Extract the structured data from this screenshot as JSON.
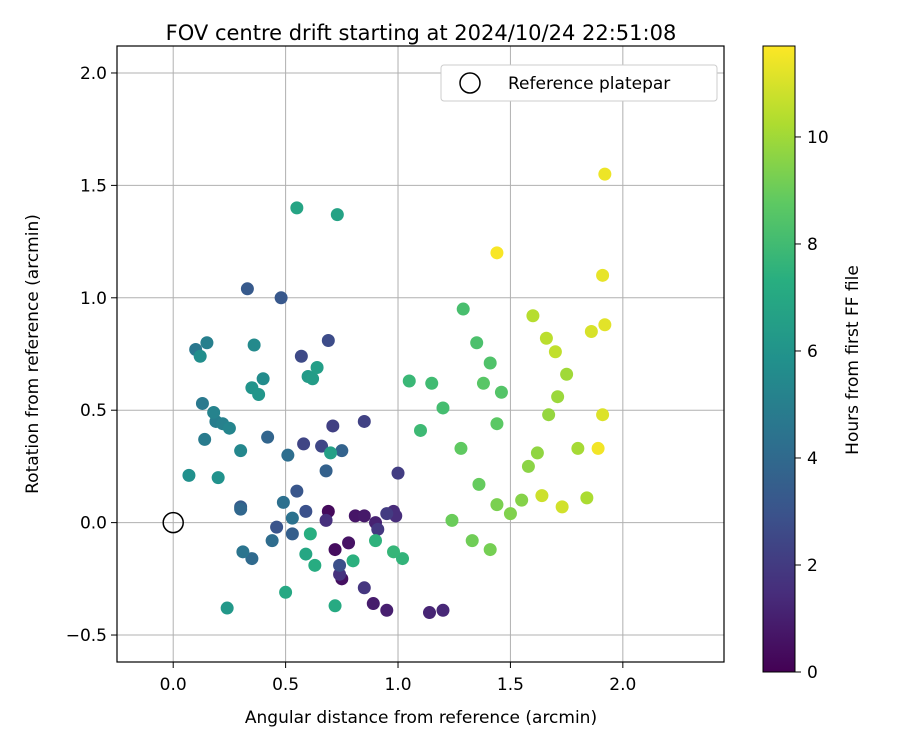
{
  "chart_data": {
    "type": "scatter",
    "title": "FOV centre drift starting at 2024/10/24 22:51:08",
    "xlabel": "Angular distance from reference (arcmin)",
    "ylabel": "Rotation from reference (arcmin)",
    "xlim": [
      -0.25,
      2.45
    ],
    "ylim": [
      -0.62,
      2.12
    ],
    "xticks": [
      0.0,
      0.5,
      1.0,
      1.5,
      2.0
    ],
    "xtick_labels": [
      "0.0",
      "0.5",
      "1.0",
      "1.5",
      "2.0"
    ],
    "yticks": [
      -0.5,
      0.0,
      0.5,
      1.0,
      1.5,
      2.0
    ],
    "ytick_labels": [
      "−0.5",
      "0.0",
      "0.5",
      "1.0",
      "1.5",
      "2.0"
    ],
    "grid": true,
    "legend": {
      "placement": "upper-right",
      "entries": [
        "Reference platepar"
      ]
    },
    "reference_point": {
      "x": 0.0,
      "y": 0.0,
      "label": "Reference platepar"
    },
    "colorbar": {
      "label": "Hours from first FF file",
      "range": [
        0,
        11.7
      ],
      "ticks": [
        0,
        2,
        4,
        6,
        8,
        10
      ],
      "tick_labels": [
        "0",
        "2",
        "4",
        "6",
        "8",
        "10"
      ],
      "colormap": "viridis"
    },
    "points": [
      [
        0.69,
        0.05,
        0.3
      ],
      [
        0.72,
        -0.12,
        0.4
      ],
      [
        0.75,
        -0.25,
        0.5
      ],
      [
        0.78,
        -0.09,
        0.6
      ],
      [
        0.81,
        0.03,
        0.7
      ],
      [
        0.85,
        0.03,
        0.8
      ],
      [
        0.89,
        -0.36,
        0.9
      ],
      [
        0.95,
        -0.39,
        1.0
      ],
      [
        0.9,
        0.0,
        1.1
      ],
      [
        1.14,
        -0.4,
        1.2
      ],
      [
        1.2,
        -0.39,
        1.3
      ],
      [
        0.98,
        0.05,
        1.4
      ],
      [
        0.99,
        0.03,
        1.5
      ],
      [
        0.68,
        0.01,
        1.6
      ],
      [
        0.74,
        -0.23,
        1.7
      ],
      [
        0.85,
        -0.29,
        1.8
      ],
      [
        0.91,
        -0.03,
        1.9
      ],
      [
        0.95,
        0.04,
        2.0
      ],
      [
        1.0,
        0.22,
        2.1
      ],
      [
        0.71,
        0.43,
        2.2
      ],
      [
        0.85,
        0.45,
        2.3
      ],
      [
        0.58,
        0.35,
        2.4
      ],
      [
        0.66,
        0.34,
        2.5
      ],
      [
        0.57,
        0.74,
        2.6
      ],
      [
        0.69,
        0.81,
        2.7
      ],
      [
        0.74,
        -0.19,
        2.8
      ],
      [
        0.59,
        0.05,
        2.9
      ],
      [
        0.46,
        -0.02,
        3.0
      ],
      [
        0.55,
        0.14,
        3.1
      ],
      [
        0.48,
        1.0,
        3.2
      ],
      [
        0.33,
        1.04,
        3.3
      ],
      [
        0.3,
        0.07,
        3.4
      ],
      [
        0.53,
        -0.05,
        3.5
      ],
      [
        0.68,
        0.23,
        3.6
      ],
      [
        0.75,
        0.32,
        3.7
      ],
      [
        0.42,
        0.38,
        3.8
      ],
      [
        0.3,
        0.06,
        3.9
      ],
      [
        0.35,
        -0.16,
        4.0
      ],
      [
        0.44,
        -0.08,
        4.1
      ],
      [
        0.51,
        0.3,
        4.2
      ],
      [
        0.49,
        0.09,
        4.3
      ],
      [
        0.53,
        0.02,
        4.4
      ],
      [
        0.31,
        -0.13,
        4.5
      ],
      [
        0.1,
        0.77,
        4.6
      ],
      [
        0.13,
        0.53,
        4.7
      ],
      [
        0.14,
        0.37,
        4.8
      ],
      [
        0.19,
        0.45,
        4.9
      ],
      [
        0.15,
        0.8,
        5.0
      ],
      [
        0.22,
        0.44,
        5.1
      ],
      [
        0.18,
        0.49,
        5.2
      ],
      [
        0.25,
        0.42,
        5.3
      ],
      [
        0.3,
        0.32,
        5.4
      ],
      [
        0.36,
        0.79,
        5.5
      ],
      [
        0.4,
        0.64,
        5.6
      ],
      [
        0.12,
        0.74,
        5.7
      ],
      [
        0.07,
        0.21,
        5.8
      ],
      [
        0.2,
        0.2,
        5.9
      ],
      [
        0.35,
        0.6,
        6.0
      ],
      [
        0.38,
        0.57,
        6.1
      ],
      [
        0.24,
        -0.38,
        6.2
      ],
      [
        0.6,
        0.65,
        6.3
      ],
      [
        0.62,
        0.64,
        6.4
      ],
      [
        0.64,
        0.69,
        6.5
      ],
      [
        0.7,
        0.31,
        6.6
      ],
      [
        0.73,
        1.37,
        6.7
      ],
      [
        0.55,
        1.4,
        6.8
      ],
      [
        0.59,
        -0.14,
        6.9
      ],
      [
        0.5,
        -0.31,
        7.0
      ],
      [
        0.72,
        -0.37,
        7.1
      ],
      [
        0.63,
        -0.19,
        7.2
      ],
      [
        0.61,
        -0.05,
        7.3
      ],
      [
        0.8,
        -0.17,
        7.4
      ],
      [
        0.9,
        -0.08,
        7.5
      ],
      [
        1.02,
        -0.16,
        7.6
      ],
      [
        0.98,
        -0.13,
        7.7
      ],
      [
        1.05,
        0.63,
        7.8
      ],
      [
        1.1,
        0.41,
        7.9
      ],
      [
        1.15,
        0.62,
        8.0
      ],
      [
        1.2,
        0.51,
        8.1
      ],
      [
        1.29,
        0.95,
        8.2
      ],
      [
        1.35,
        0.8,
        8.3
      ],
      [
        1.41,
        0.71,
        8.4
      ],
      [
        1.46,
        0.58,
        8.5
      ],
      [
        1.38,
        0.62,
        8.6
      ],
      [
        1.44,
        0.44,
        8.7
      ],
      [
        1.28,
        0.33,
        8.8
      ],
      [
        1.36,
        0.17,
        8.9
      ],
      [
        1.24,
        0.01,
        9.0
      ],
      [
        1.33,
        -0.08,
        9.1
      ],
      [
        1.41,
        -0.12,
        9.2
      ],
      [
        1.44,
        0.08,
        9.3
      ],
      [
        1.5,
        0.04,
        9.4
      ],
      [
        1.55,
        0.1,
        9.5
      ],
      [
        1.58,
        0.25,
        9.6
      ],
      [
        1.62,
        0.31,
        9.7
      ],
      [
        1.67,
        0.48,
        9.8
      ],
      [
        1.71,
        0.56,
        9.9
      ],
      [
        1.75,
        0.66,
        10.0
      ],
      [
        1.8,
        0.33,
        10.1
      ],
      [
        1.84,
        0.11,
        10.2
      ],
      [
        1.6,
        0.92,
        10.4
      ],
      [
        1.66,
        0.82,
        10.5
      ],
      [
        1.7,
        0.76,
        10.6
      ],
      [
        1.64,
        0.12,
        10.8
      ],
      [
        1.73,
        0.07,
        10.9
      ],
      [
        1.86,
        0.85,
        11.0
      ],
      [
        1.91,
        0.48,
        11.1
      ],
      [
        1.92,
        0.88,
        11.2
      ],
      [
        1.91,
        1.1,
        11.3
      ],
      [
        1.92,
        1.55,
        11.4
      ],
      [
        1.89,
        0.33,
        11.5
      ],
      [
        1.44,
        1.2,
        11.6
      ]
    ]
  }
}
